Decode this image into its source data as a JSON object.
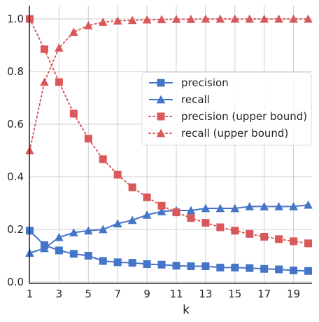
{
  "chart_data": {
    "type": "line",
    "title": "",
    "xlabel": "k",
    "ylabel": "",
    "xlim": [
      1,
      20
    ],
    "ylim": [
      0,
      1.0
    ],
    "grid": true,
    "legend_position": "center-right",
    "x_ticks": [
      1,
      3,
      5,
      7,
      9,
      11,
      13,
      15,
      17,
      19
    ],
    "y_ticks": [
      0.0,
      0.2,
      0.4,
      0.6,
      0.8,
      1.0
    ],
    "x_tick_labels": [
      "1",
      "3",
      "5",
      "7",
      "9",
      "11",
      "13",
      "15",
      "17",
      "19"
    ],
    "y_tick_labels": [
      "0.0",
      "0.2",
      "0.4",
      "0.6",
      "0.8",
      "1.0"
    ],
    "x": [
      1,
      2,
      3,
      4,
      5,
      6,
      7,
      8,
      9,
      10,
      11,
      12,
      13,
      14,
      15,
      16,
      17,
      18,
      19,
      20
    ],
    "series": [
      {
        "name": "precision",
        "color": "#4575c8",
        "style": "solid",
        "marker": "square",
        "values": [
          0.195,
          0.14,
          0.12,
          0.107,
          0.1,
          0.08,
          0.075,
          0.073,
          0.068,
          0.066,
          0.062,
          0.06,
          0.06,
          0.055,
          0.055,
          0.053,
          0.05,
          0.048,
          0.044,
          0.042
        ]
      },
      {
        "name": "recall",
        "color": "#4575c8",
        "style": "solid",
        "marker": "triangle",
        "values": [
          0.11,
          0.128,
          0.17,
          0.188,
          0.195,
          0.2,
          0.222,
          0.235,
          0.255,
          0.268,
          0.272,
          0.272,
          0.28,
          0.28,
          0.28,
          0.287,
          0.287,
          0.287,
          0.287,
          0.293
        ]
      },
      {
        "name": "precision (upper bound)",
        "color": "#d9595b",
        "style": "dotted",
        "marker": "square",
        "values": [
          1.0,
          0.885,
          0.76,
          0.64,
          0.545,
          0.467,
          0.408,
          0.36,
          0.322,
          0.29,
          0.265,
          0.243,
          0.225,
          0.208,
          0.195,
          0.183,
          0.172,
          0.163,
          0.155,
          0.147
        ]
      },
      {
        "name": "recall (upper bound)",
        "color": "#d9595b",
        "style": "dotted",
        "marker": "triangle",
        "values": [
          0.5,
          0.76,
          0.89,
          0.95,
          0.975,
          0.988,
          0.993,
          0.995,
          0.997,
          0.998,
          0.999,
          0.999,
          1.0,
          1.0,
          1.0,
          1.0,
          1.0,
          1.0,
          1.0,
          1.0
        ]
      }
    ]
  }
}
